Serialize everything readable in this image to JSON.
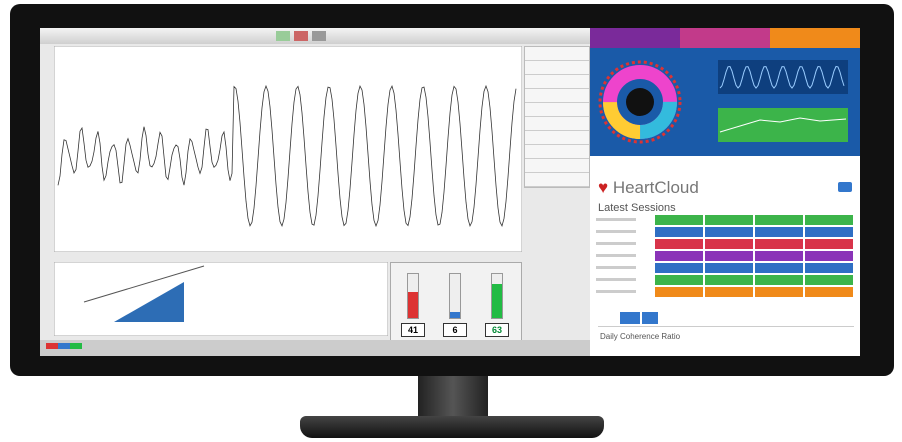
{
  "gauges": [
    41,
    6,
    63
  ],
  "heartcloud": {
    "brand": "HeartCloud",
    "sessions_title": "Latest Sessions",
    "report_title": "Daily Coherence Ratio"
  }
}
